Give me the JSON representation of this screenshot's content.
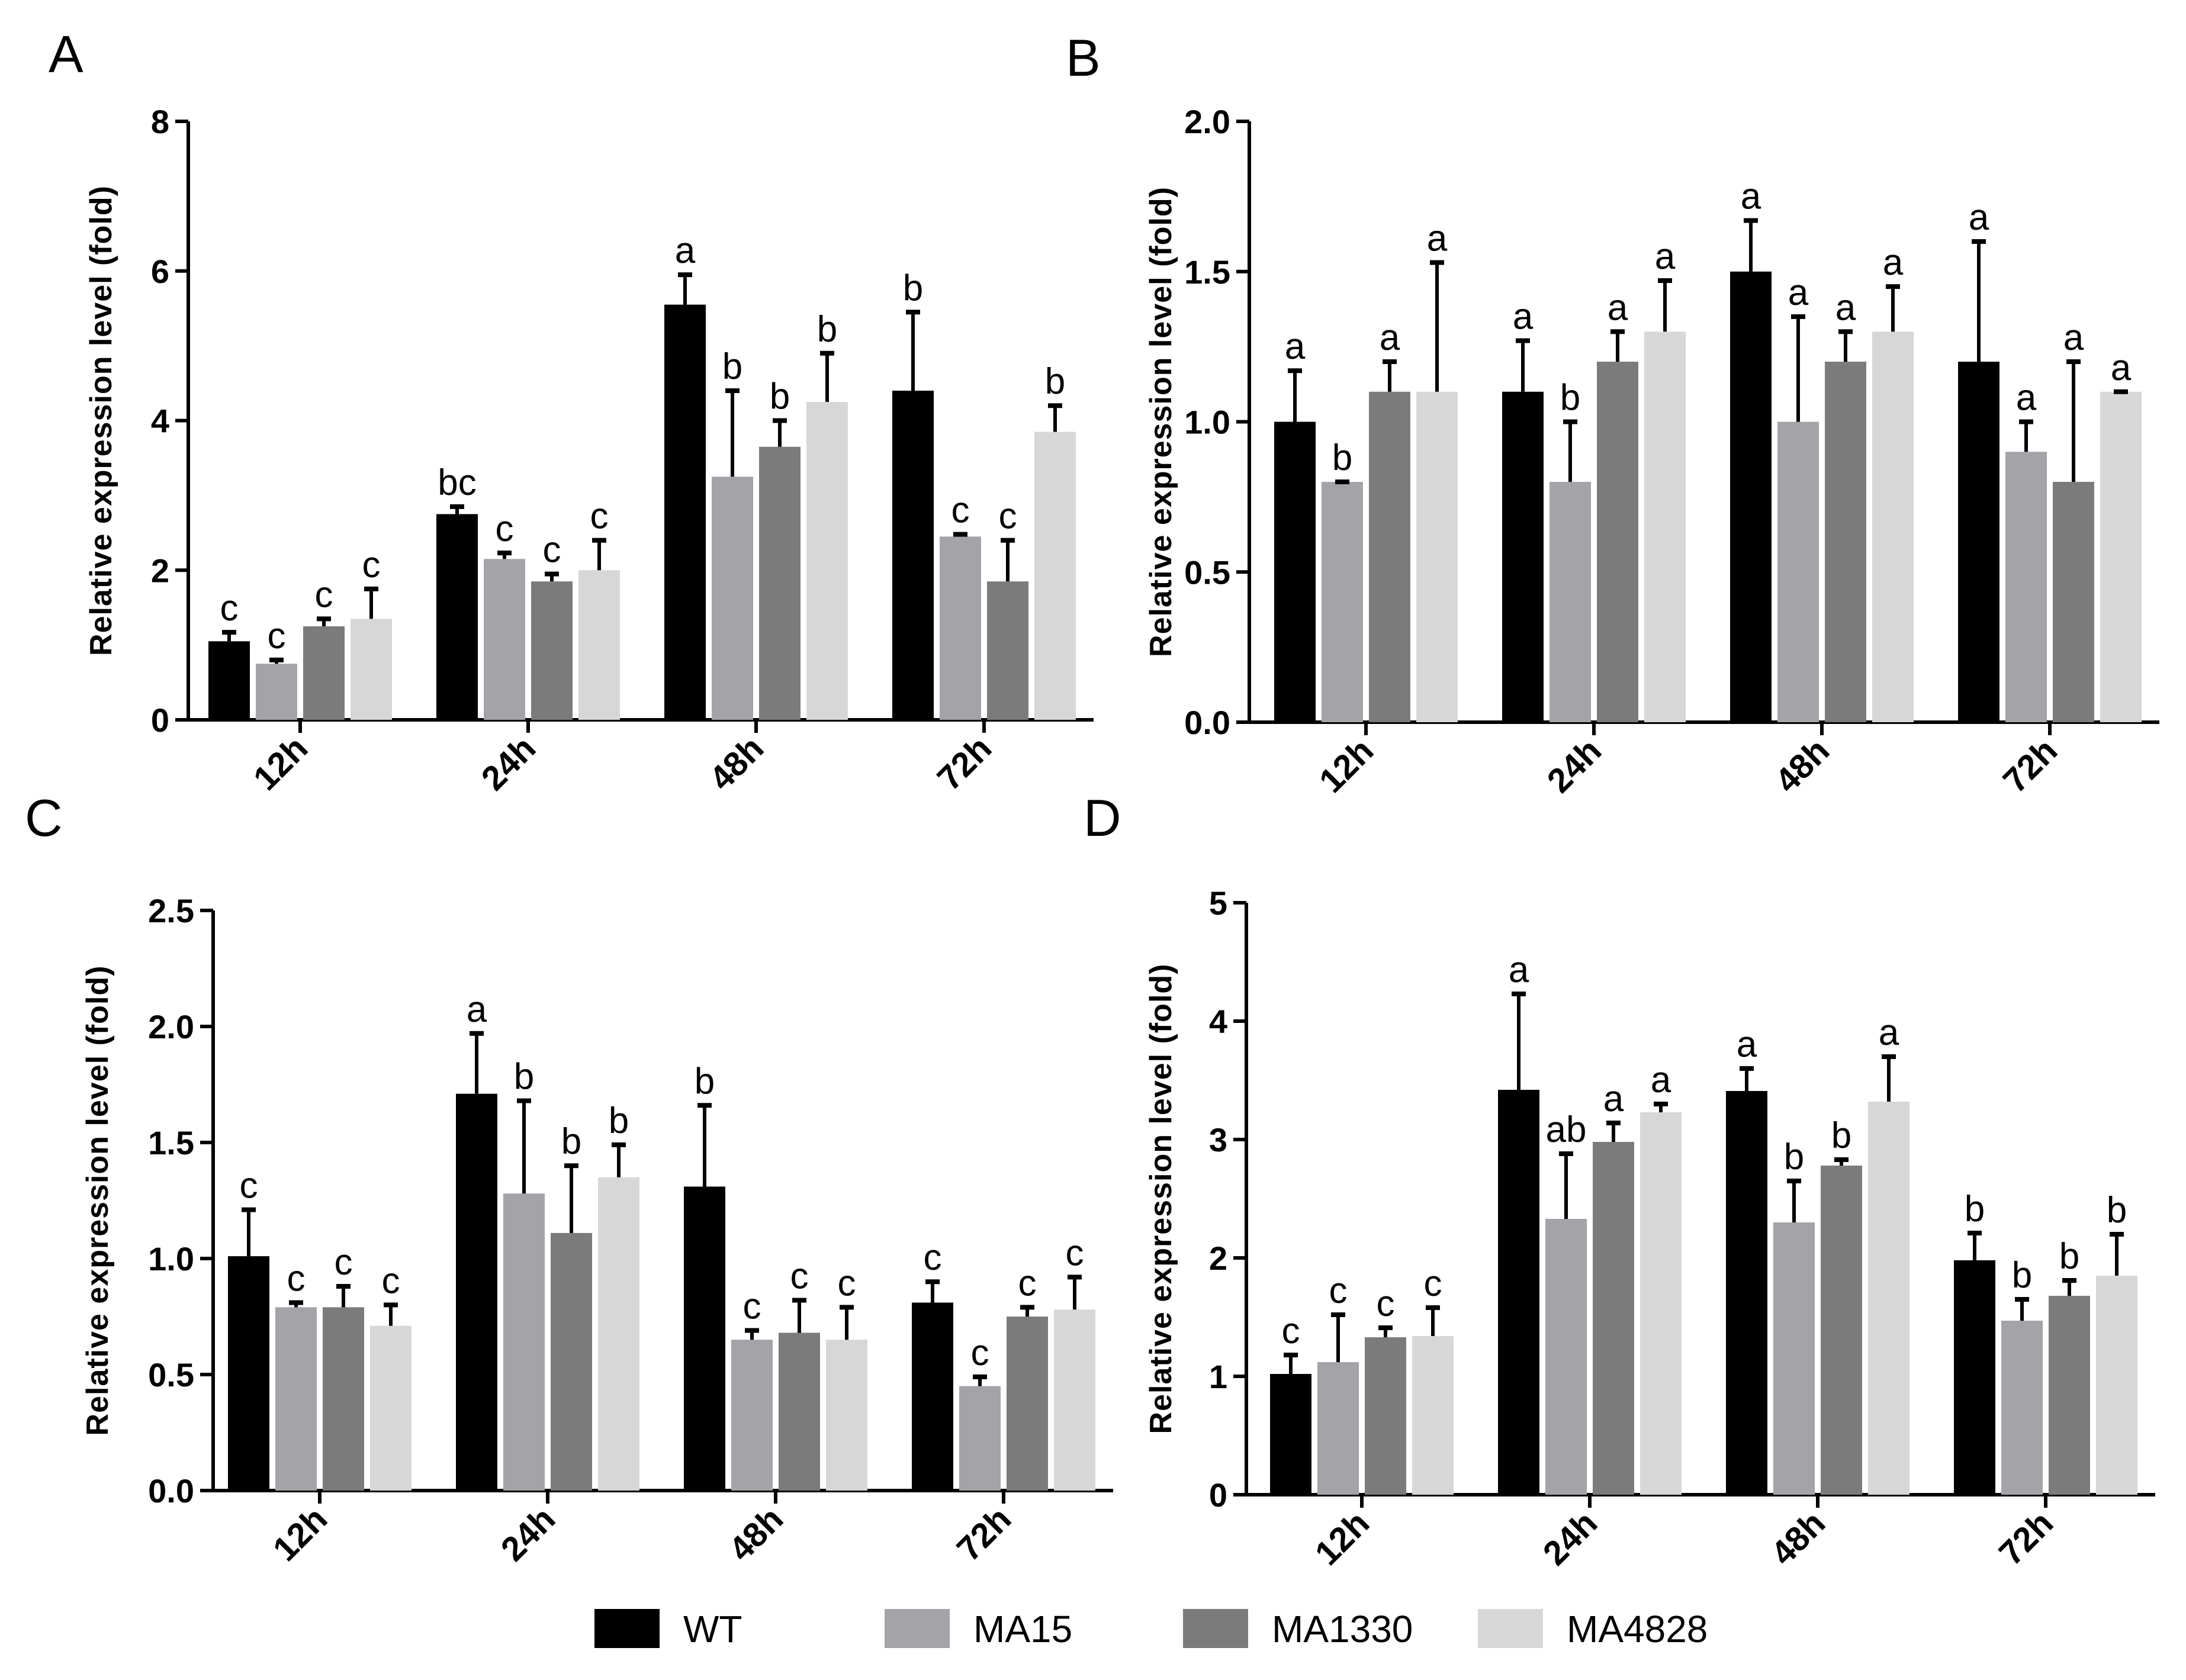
{
  "legend": [
    {
      "name": "WT",
      "color": "#000000"
    },
    {
      "name": "MA15",
      "color": "#a3a3a8"
    },
    {
      "name": "MA1330",
      "color": "#7b7b7b"
    },
    {
      "name": "MA4828",
      "color": "#d7d7d7"
    }
  ],
  "chart_data": [
    {
      "type": "bar",
      "panel": "A",
      "title": "",
      "xlabel": "",
      "ylabel": "Relative expression level (fold)",
      "ylim": [
        0,
        8
      ],
      "yticks": [
        "0",
        "2",
        "4",
        "6",
        "8"
      ],
      "categories": [
        "12h",
        "24h",
        "48h",
        "72h"
      ],
      "series": [
        {
          "name": "WT",
          "values": [
            1.05,
            2.75,
            5.55,
            4.4
          ],
          "errors": [
            0.12,
            0.1,
            0.4,
            1.05
          ],
          "labels": [
            "c",
            "bc",
            "a",
            "b"
          ]
        },
        {
          "name": "MA15",
          "values": [
            0.75,
            2.15,
            3.25,
            2.45
          ],
          "errors": [
            0.05,
            0.08,
            1.15,
            0.03
          ],
          "labels": [
            "c",
            "c",
            "b",
            "c"
          ]
        },
        {
          "name": "MA1330",
          "values": [
            1.25,
            1.85,
            3.65,
            1.85
          ],
          "errors": [
            0.1,
            0.1,
            0.35,
            0.55
          ],
          "labels": [
            "c",
            "c",
            "b",
            "c"
          ]
        },
        {
          "name": "MA4828",
          "values": [
            1.35,
            2.0,
            4.25,
            3.85
          ],
          "errors": [
            0.4,
            0.4,
            0.65,
            0.35
          ],
          "labels": [
            "c",
            "c",
            "b",
            "b"
          ]
        }
      ]
    },
    {
      "type": "bar",
      "panel": "B",
      "title": "",
      "xlabel": "",
      "ylabel": "Relative expression level (fold)",
      "ylim": [
        0,
        2
      ],
      "yticks": [
        "0.0",
        "0.5",
        "1.0",
        "1.5",
        "2.0"
      ],
      "categories": [
        "12h",
        "24h",
        "48h",
        "72h"
      ],
      "series": [
        {
          "name": "WT",
          "values": [
            1.0,
            1.1,
            1.5,
            1.2
          ],
          "errors": [
            0.17,
            0.17,
            0.17,
            0.4
          ],
          "labels": [
            "a",
            "a",
            "a",
            "a"
          ]
        },
        {
          "name": "MA15",
          "values": [
            0.8,
            0.8,
            1.0,
            0.9
          ],
          "errors": [
            0.0,
            0.2,
            0.35,
            0.1
          ],
          "labels": [
            "b",
            "b",
            "a",
            "a"
          ]
        },
        {
          "name": "MA1330",
          "values": [
            1.1,
            1.2,
            1.2,
            0.8
          ],
          "errors": [
            0.1,
            0.1,
            0.1,
            0.4
          ],
          "labels": [
            "a",
            "a",
            "a",
            "a"
          ]
        },
        {
          "name": "MA4828",
          "values": [
            1.1,
            1.3,
            1.3,
            1.1
          ],
          "errors": [
            0.43,
            0.17,
            0.15,
            0.0
          ],
          "labels": [
            "a",
            "a",
            "a",
            "a"
          ]
        }
      ]
    },
    {
      "type": "bar",
      "panel": "C",
      "title": "",
      "xlabel": "",
      "ylabel": "Relative expression level (fold)",
      "ylim": [
        0,
        2.5
      ],
      "yticks": [
        "0.0",
        "0.5",
        "1.0",
        "1.5",
        "2.0",
        "2.5"
      ],
      "categories": [
        "12h",
        "24h",
        "48h",
        "72h"
      ],
      "series": [
        {
          "name": "WT",
          "values": [
            1.01,
            1.71,
            1.31,
            0.81
          ],
          "errors": [
            0.2,
            0.26,
            0.35,
            0.09
          ],
          "labels": [
            "c",
            "a",
            "b",
            "c"
          ]
        },
        {
          "name": "MA15",
          "values": [
            0.79,
            1.28,
            0.65,
            0.45
          ],
          "errors": [
            0.02,
            0.4,
            0.04,
            0.04
          ],
          "labels": [
            "c",
            "b",
            "c",
            "c"
          ]
        },
        {
          "name": "MA1330",
          "values": [
            0.79,
            1.11,
            0.68,
            0.75
          ],
          "errors": [
            0.09,
            0.29,
            0.14,
            0.04
          ],
          "labels": [
            "c",
            "b",
            "c",
            "c"
          ]
        },
        {
          "name": "MA4828",
          "values": [
            0.71,
            1.35,
            0.65,
            0.78
          ],
          "errors": [
            0.09,
            0.14,
            0.14,
            0.14
          ],
          "labels": [
            "c",
            "b",
            "c",
            "c"
          ]
        }
      ]
    },
    {
      "type": "bar",
      "panel": "D",
      "title": "",
      "xlabel": "",
      "ylabel": "Relative expression level (fold)",
      "ylim": [
        0,
        5
      ],
      "yticks": [
        "0",
        "1",
        "2",
        "3",
        "4",
        "5"
      ],
      "categories": [
        "12h",
        "24h",
        "48h",
        "72h"
      ],
      "series": [
        {
          "name": "WT",
          "values": [
            1.02,
            3.42,
            3.41,
            1.98
          ],
          "errors": [
            0.16,
            0.81,
            0.19,
            0.23
          ],
          "labels": [
            "c",
            "a",
            "a",
            "b"
          ]
        },
        {
          "name": "MA15",
          "values": [
            1.12,
            2.33,
            2.3,
            1.47
          ],
          "errors": [
            0.4,
            0.55,
            0.35,
            0.18
          ],
          "labels": [
            "c",
            "ab",
            "b",
            "b"
          ]
        },
        {
          "name": "MA1330",
          "values": [
            1.33,
            2.98,
            2.78,
            1.68
          ],
          "errors": [
            0.08,
            0.16,
            0.05,
            0.13
          ],
          "labels": [
            "c",
            "a",
            "b",
            "b"
          ]
        },
        {
          "name": "MA4828",
          "values": [
            1.34,
            3.23,
            3.32,
            1.85
          ],
          "errors": [
            0.24,
            0.07,
            0.38,
            0.35
          ],
          "labels": [
            "c",
            "a",
            "a",
            "b"
          ]
        }
      ]
    }
  ]
}
